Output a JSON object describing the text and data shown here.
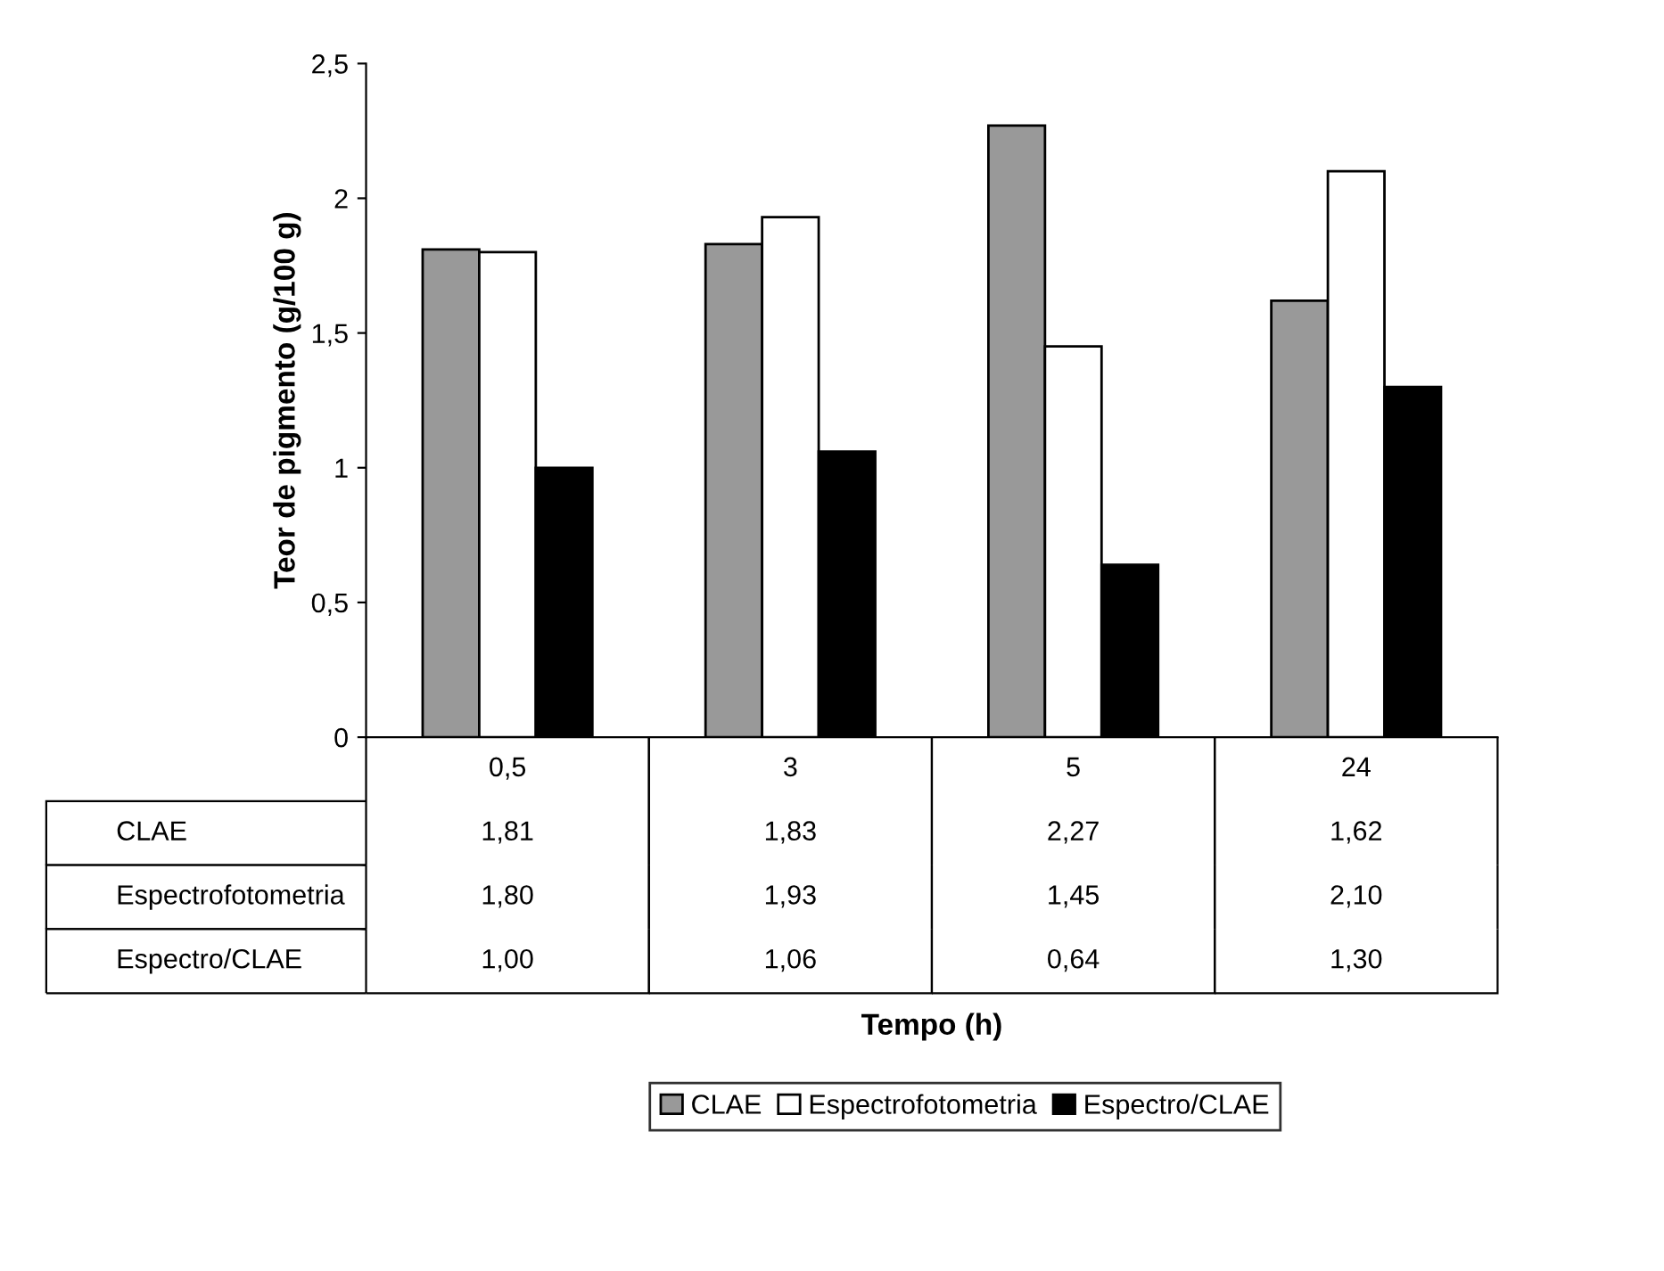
{
  "chart_data": {
    "type": "bar",
    "ylabel": "Teor de pigmento (g/100 g)",
    "annotations": [
      "Tempo (h)"
    ],
    "categories": [
      "0,5",
      "3",
      "5",
      "24"
    ],
    "series": [
      {
        "name": "CLAE",
        "color": "#999999",
        "values": [
          1.81,
          1.83,
          2.27,
          1.62
        ],
        "value_labels": [
          "1,81",
          "1,83",
          "2,27",
          "1,62"
        ]
      },
      {
        "name": "Espectrofotometria",
        "color": "#ffffff",
        "values": [
          1.8,
          1.93,
          1.45,
          2.1
        ],
        "value_labels": [
          "1,80",
          "1,93",
          "1,45",
          "2,10"
        ]
      },
      {
        "name": "Espectro/CLAE",
        "color": "#000000",
        "values": [
          1.0,
          1.06,
          0.64,
          1.3
        ],
        "value_labels": [
          "1,00",
          "1,06",
          "0,64",
          "1,30"
        ]
      }
    ],
    "ylim": [
      0,
      2.5
    ],
    "yticks": [
      0,
      {
        "value": 0.5,
        "label": "0,5"
      },
      1,
      {
        "value": 1.5,
        "label": "1,5"
      },
      2,
      {
        "value": 2.5,
        "label": "2,5"
      }
    ],
    "grid": false,
    "legend": "bottom",
    "tick_labels": "y"
  }
}
